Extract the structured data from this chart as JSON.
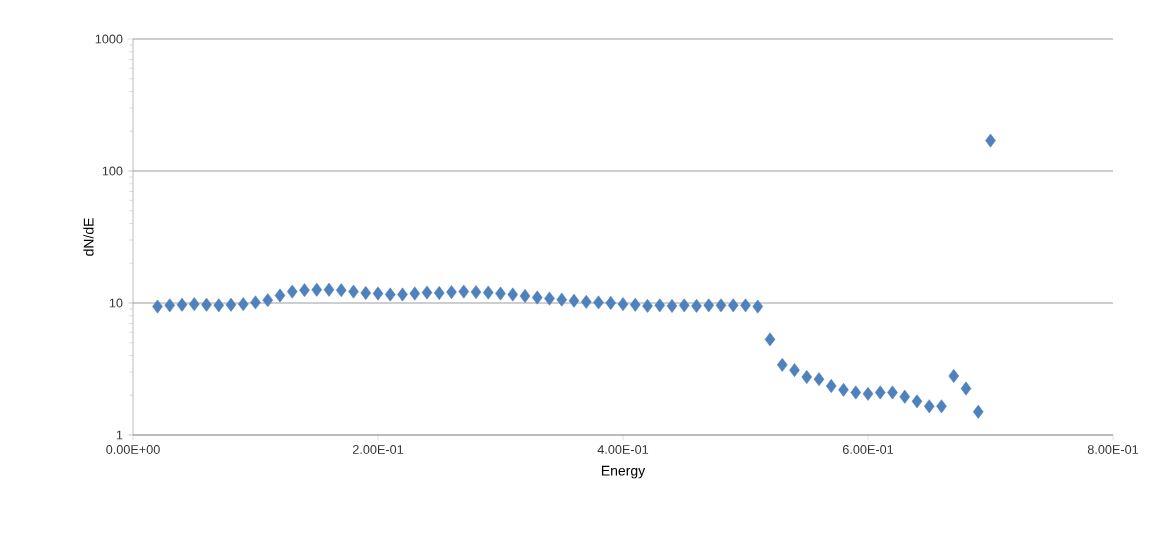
{
  "chart_data": {
    "type": "scatter",
    "xlabel": "Energy",
    "ylabel": "dN/dE",
    "x": [
      0.02,
      0.03,
      0.04,
      0.05,
      0.06,
      0.07,
      0.08,
      0.09,
      0.1,
      0.11,
      0.12,
      0.13,
      0.14,
      0.15,
      0.16,
      0.17,
      0.18,
      0.19,
      0.2,
      0.21,
      0.22,
      0.23,
      0.24,
      0.25,
      0.26,
      0.27,
      0.28,
      0.29,
      0.3,
      0.31,
      0.32,
      0.33,
      0.34,
      0.35,
      0.36,
      0.37,
      0.38,
      0.39,
      0.4,
      0.41,
      0.42,
      0.43,
      0.44,
      0.45,
      0.46,
      0.47,
      0.48,
      0.49,
      0.5,
      0.51,
      0.52,
      0.53,
      0.54,
      0.55,
      0.56,
      0.57,
      0.58,
      0.59,
      0.6,
      0.61,
      0.62,
      0.63,
      0.64,
      0.65,
      0.66,
      0.67,
      0.68,
      0.69,
      0.7
    ],
    "values": [
      9.4,
      9.6,
      9.7,
      9.8,
      9.7,
      9.6,
      9.7,
      9.8,
      10.1,
      10.5,
      11.4,
      12.2,
      12.5,
      12.6,
      12.6,
      12.5,
      12.2,
      11.9,
      11.8,
      11.6,
      11.6,
      11.8,
      12.0,
      11.9,
      12.1,
      12.2,
      12.1,
      12.0,
      11.8,
      11.6,
      11.3,
      11.0,
      10.8,
      10.6,
      10.4,
      10.2,
      10.1,
      10.0,
      9.8,
      9.7,
      9.5,
      9.6,
      9.5,
      9.6,
      9.5,
      9.6,
      9.6,
      9.6,
      9.6,
      9.4,
      5.3,
      3.4,
      3.1,
      2.75,
      2.65,
      2.35,
      2.2,
      2.1,
      2.05,
      2.1,
      2.1,
      1.95,
      1.8,
      1.65,
      1.65,
      2.8,
      2.25,
      1.5,
      170
    ],
    "color": "#4f81bd",
    "marker": "diamond",
    "log": "y",
    "grid": "y",
    "xlim": [
      0,
      0.8
    ],
    "xticks": [
      {
        "value": 0,
        "label": "0.00E+00"
      },
      {
        "value": 0.2,
        "label": "2.00E-01"
      },
      {
        "value": 0.4,
        "label": "4.00E-01"
      },
      {
        "value": 0.6,
        "label": "6.00E-01"
      },
      {
        "value": 0.8,
        "label": "8.00E-01"
      }
    ],
    "ylim": [
      1,
      1000
    ],
    "yticks": [
      1,
      10,
      100,
      1000
    ]
  }
}
